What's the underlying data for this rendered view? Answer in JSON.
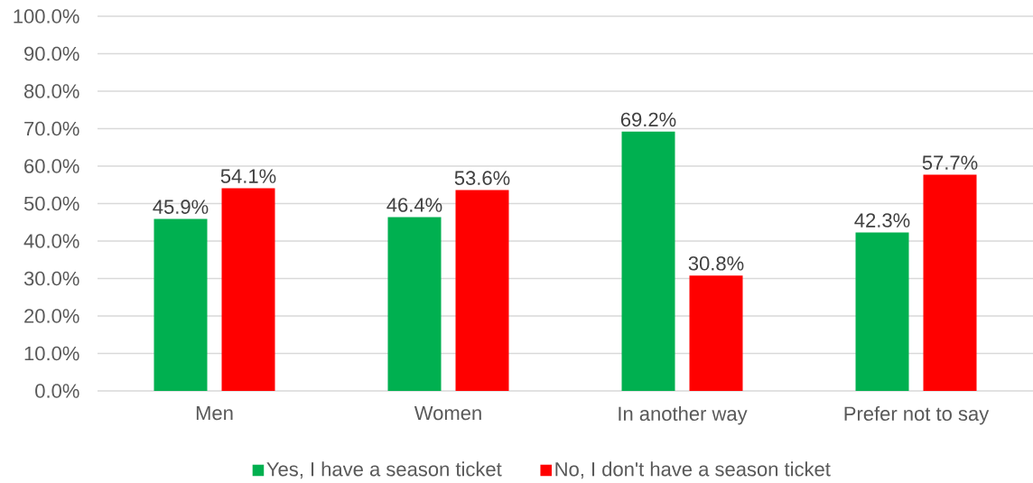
{
  "chart_data": {
    "type": "bar",
    "categories": [
      "Men",
      "Women",
      "In another way",
      "Prefer not to say"
    ],
    "series": [
      {
        "name": "Yes, I have a season ticket",
        "color": "#00b050",
        "values": [
          45.9,
          46.4,
          69.2,
          42.3
        ],
        "value_labels": [
          "45.9%",
          "46.4%",
          "69.2%",
          "42.3%"
        ]
      },
      {
        "name": "No, I don't have a season ticket",
        "color": "#ff0000",
        "values": [
          54.1,
          53.6,
          30.8,
          57.7
        ],
        "value_labels": [
          "54.1%",
          "53.6%",
          "30.8%",
          "57.7%"
        ]
      }
    ],
    "ylim": [
      0,
      100
    ],
    "yticks": [
      {
        "value": 0,
        "label": "0.0%"
      },
      {
        "value": 10,
        "label": "10.0%"
      },
      {
        "value": 20,
        "label": "20.0%"
      },
      {
        "value": 30,
        "label": "30.0%"
      },
      {
        "value": 40,
        "label": "40.0%"
      },
      {
        "value": 50,
        "label": "50.0%"
      },
      {
        "value": 60,
        "label": "60.0%"
      },
      {
        "value": 70,
        "label": "70.0%"
      },
      {
        "value": 80,
        "label": "80.0%"
      },
      {
        "value": 90,
        "label": "90.0%"
      },
      {
        "value": 100,
        "label": "100.0%"
      }
    ],
    "grid": "y",
    "legend": "bottom"
  }
}
